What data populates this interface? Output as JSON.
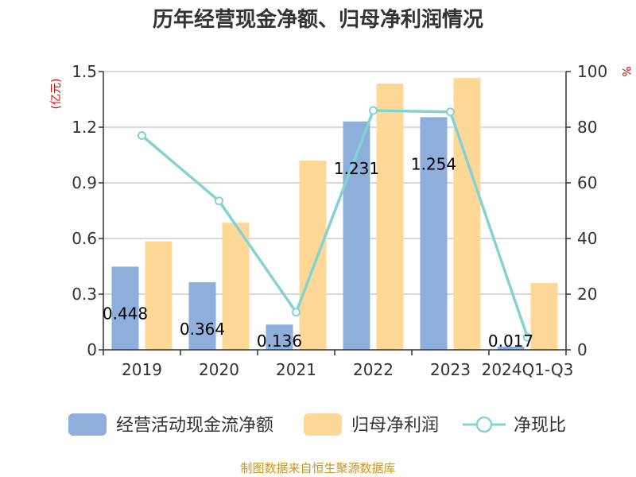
{
  "chart_data": {
    "type": "bar",
    "title": "历年经营现金净额、归母净利润情况",
    "categories": [
      "2019",
      "2020",
      "2021",
      "2022",
      "2023",
      "2024Q1-Q3"
    ],
    "y_left_unit": "(亿元)",
    "y_right_unit": "%",
    "y_left_lim": [
      0,
      1.5
    ],
    "y_left_ticks": [
      "0",
      "0.3",
      "0.6",
      "0.9",
      "1.2",
      "1.5"
    ],
    "y_right_lim": [
      0,
      100
    ],
    "y_right_ticks": [
      "0",
      "20",
      "40",
      "60",
      "80",
      "100"
    ],
    "grid": true,
    "legend_position": "bottom",
    "series": [
      {
        "name": "经营活动现金流净额",
        "kind": "bar",
        "axis": "left",
        "color": "#8eaedc",
        "values": [
          0.448,
          0.364,
          0.136,
          1.231,
          1.254,
          0.017
        ],
        "labels": [
          "0.448",
          "0.364",
          "0.136",
          "1.231",
          "1.254",
          "0.017"
        ]
      },
      {
        "name": "归母净利润",
        "kind": "bar",
        "axis": "left",
        "color": "#ffd897",
        "values": [
          0.585,
          0.685,
          1.02,
          1.435,
          1.465,
          0.36
        ]
      },
      {
        "name": "净现比",
        "kind": "line",
        "axis": "right",
        "color": "#84d3d4",
        "values": [
          77,
          53.5,
          13.5,
          86,
          85.5,
          4.5
        ]
      }
    ],
    "source": "制图数据来自恒生聚源数据库"
  }
}
